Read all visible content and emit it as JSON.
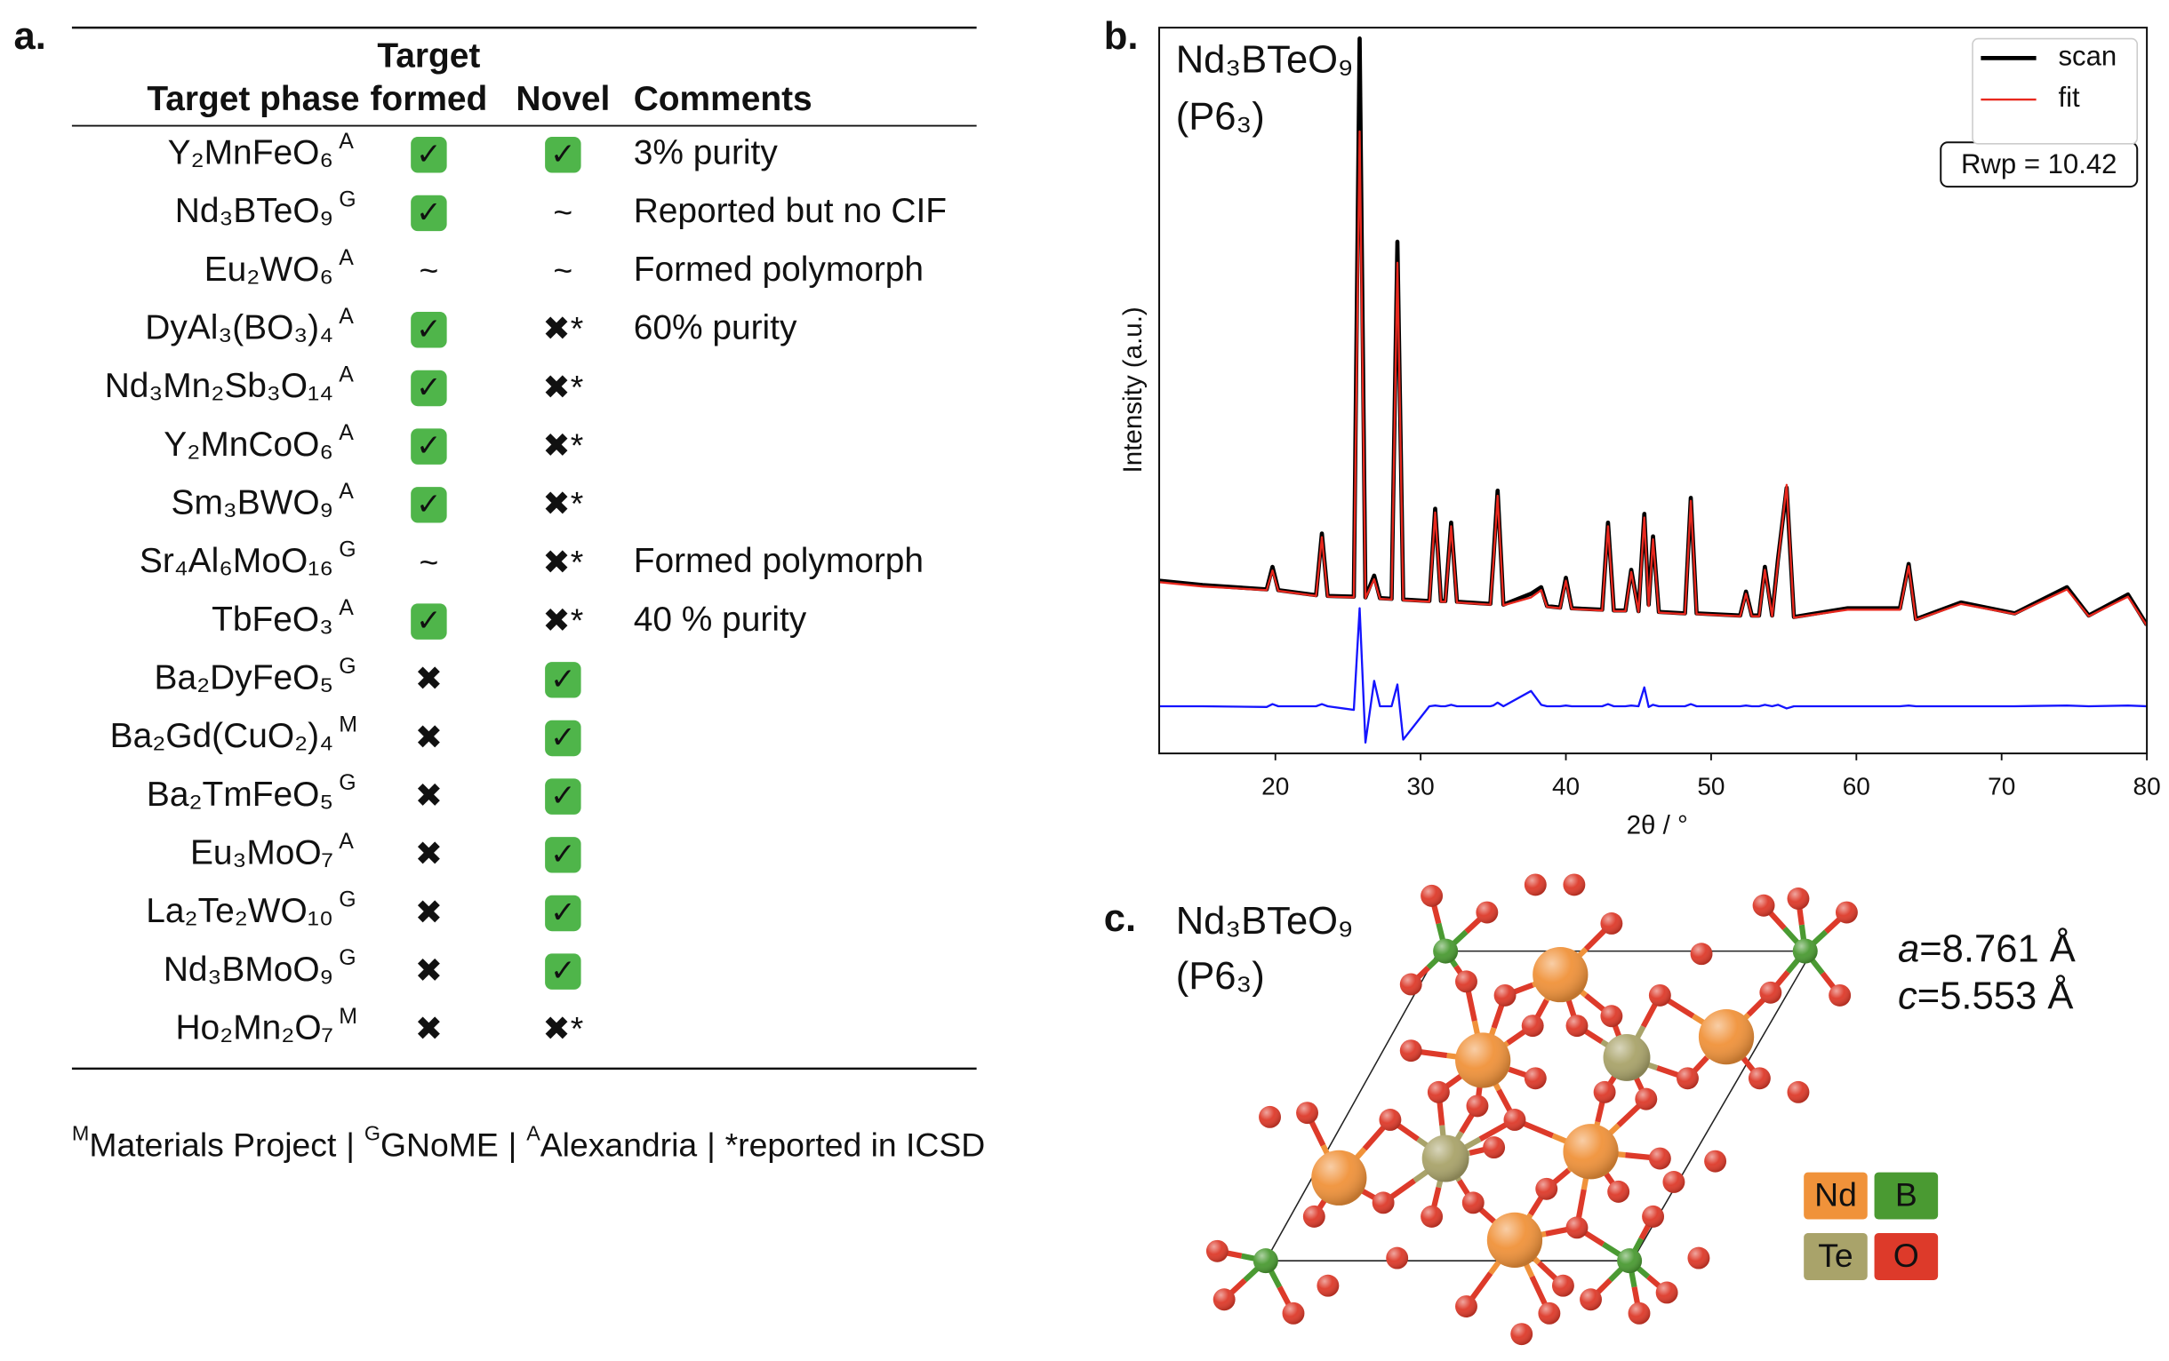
{
  "panel_labels": [
    "a.",
    "b.",
    "c."
  ],
  "table": {
    "header": {
      "target_phase": "Target phase",
      "formed": [
        "Target",
        "formed"
      ],
      "novel": "Novel",
      "comments": "Comments"
    },
    "rows": [
      {
        "phase": "Y₂MnFeO₆",
        "source": "A",
        "formed": "✓",
        "novel": "✓",
        "comments": "3% purity"
      },
      {
        "phase": "Nd₃BTeO₉",
        "source": "G",
        "formed": "✓",
        "novel": "~",
        "comments": "Reported but no CIF"
      },
      {
        "phase": "Eu₂WO₆",
        "source": "A",
        "formed": "~",
        "novel": "~",
        "comments": "Formed polymorph"
      },
      {
        "phase": "DyAl₃(BO₃)₄",
        "source": "A",
        "formed": "✓",
        "novel": "✖*",
        "comments": "60% purity"
      },
      {
        "phase": "Nd₃Mn₂Sb₃O₁₄",
        "source": "A",
        "formed": "✓",
        "novel": "✖*"
      },
      {
        "phase": "Y₂MnCoO₆",
        "source": "A",
        "formed": "✓",
        "novel": "✖*"
      },
      {
        "phase": "Sm₃BWO₉",
        "source": "A",
        "formed": "✓",
        "novel": "✖*"
      },
      {
        "phase": "Sr₄Al₆MoO₁₆",
        "source": "G",
        "formed": "~",
        "novel": "✖*",
        "comments": "Formed polymorph"
      },
      {
        "phase": "TbFeO₃",
        "source": "A",
        "formed": "✓",
        "novel": "✖*",
        "comments": "40 % purity"
      },
      {
        "phase": "Ba₂DyFeO₅",
        "source": "G",
        "formed": "✖",
        "novel": "✓"
      },
      {
        "phase": "Ba₂Gd(CuO₂)₄",
        "source": "M",
        "formed": "✖",
        "novel": "✓"
      },
      {
        "phase": "Ba₂TmFeO₅",
        "source": "G",
        "formed": "✖",
        "novel": "✓"
      },
      {
        "phase": "Eu₃MoO₇",
        "source": "A",
        "formed": "✖",
        "novel": "✓"
      },
      {
        "phase": "La₂Te₂WO₁₀",
        "source": "G",
        "formed": "✖",
        "novel": "✓"
      },
      {
        "phase": "Nd₃BMoO₉",
        "source": "G",
        "formed": "✖",
        "novel": "✓"
      },
      {
        "phase": "Ho₂Mn₂O₇",
        "source": "M",
        "formed": "✖",
        "novel": "✖*"
      }
    ]
  },
  "footnote": {
    "items": [
      {
        "sup": "M",
        "text": "Materials Project"
      },
      {
        "sup": "G",
        "text": "GNoME"
      },
      {
        "sup": "A",
        "text": "Alexandria"
      },
      {
        "text": "*reported in ICSD"
      }
    ],
    "separator": "|"
  },
  "chart_data": {
    "type": "line",
    "title": "Nd₃BTeO₉",
    "subtitle": "(P6₃)",
    "xlabel": "2θ / °",
    "ylabel": "Intensity (a.u.)",
    "annotation": "Rwp = 10.42",
    "legend_position": "upper right",
    "xlim": [
      12,
      80
    ],
    "xticks": [
      20,
      30,
      40,
      50,
      60,
      70,
      80
    ],
    "ylim": [
      0,
      100
    ],
    "x": [
      12,
      15,
      19.4,
      19.8,
      20.2,
      22.8,
      23.2,
      23.6,
      25.4,
      25.8,
      26.2,
      26.8,
      27.2,
      28.0,
      28.4,
      28.8,
      30.6,
      31.0,
      31.4,
      31.7,
      32.1,
      32.5,
      34.8,
      35.0,
      35.3,
      35.7,
      37.6,
      38.3,
      38.7,
      39.6,
      40.0,
      40.4,
      42.5,
      42.9,
      43.3,
      44.1,
      44.5,
      45.0,
      45.4,
      45.7,
      46.0,
      46.4,
      48.2,
      48.6,
      49.0,
      52.0,
      52.4,
      52.8,
      53.3,
      53.7,
      54.2,
      54.6,
      55.2,
      55.7,
      59.4,
      63.0,
      63.6,
      64.1,
      67.2,
      70.9,
      74.5,
      76.0,
      78.7,
      80
    ],
    "series": [
      {
        "name": "scan",
        "color": "#000000",
        "width": 3,
        "values": [
          23.8,
          23.2,
          22.6,
          25.7,
          22.5,
          21.8,
          30.3,
          21.7,
          21.6,
          98.5,
          21.5,
          24.5,
          21.4,
          21.3,
          70.5,
          21.2,
          21.0,
          33.7,
          21.0,
          21.0,
          31.8,
          20.9,
          20.6,
          26.5,
          36.2,
          20.5,
          22.0,
          22.9,
          20.3,
          20.1,
          24.2,
          20.0,
          19.8,
          31.8,
          19.7,
          19.7,
          25.3,
          19.6,
          33.0,
          20.5,
          29.9,
          19.5,
          19.3,
          35.2,
          19.3,
          19.0,
          22.3,
          19.0,
          19.0,
          25.7,
          19.0,
          26.7,
          36.6,
          18.8,
          20.0,
          20.0,
          26.1,
          18.5,
          20.8,
          19.3,
          22.9,
          19.0,
          21.9,
          17.7
        ]
      },
      {
        "name": "fit",
        "color": "#e8281e",
        "width": 1.5,
        "values": [
          23.6,
          23.0,
          22.5,
          25.2,
          22.4,
          21.7,
          29.8,
          21.6,
          21.5,
          85.7,
          21.4,
          24.0,
          21.3,
          21.2,
          67.6,
          21.1,
          20.9,
          33.2,
          20.9,
          20.9,
          31.3,
          20.8,
          20.5,
          26.0,
          35.5,
          20.4,
          21.5,
          22.5,
          20.2,
          20.0,
          23.8,
          19.9,
          19.7,
          31.3,
          19.6,
          19.6,
          25.0,
          19.5,
          32.5,
          20.3,
          29.5,
          19.4,
          19.2,
          34.8,
          19.2,
          18.9,
          22.0,
          18.9,
          18.9,
          25.3,
          18.9,
          26.3,
          37.0,
          18.7,
          19.8,
          19.8,
          25.8,
          18.4,
          20.6,
          19.2,
          22.6,
          18.9,
          21.6,
          17.6
        ]
      },
      {
        "color": "#1414ff",
        "width": 1.5,
        "values": [
          6.5,
          6.5,
          6.4,
          6.8,
          6.5,
          6.5,
          6.8,
          6.5,
          6.0,
          20.0,
          1.5,
          10.0,
          6.5,
          6.5,
          9.5,
          1.9,
          6.5,
          6.6,
          6.5,
          6.5,
          6.7,
          6.5,
          6.5,
          6.6,
          7.0,
          6.5,
          8.6,
          6.7,
          6.5,
          6.5,
          6.6,
          6.5,
          6.5,
          6.8,
          6.5,
          6.5,
          6.6,
          6.5,
          9.1,
          6.4,
          6.7,
          6.5,
          6.5,
          6.8,
          6.5,
          6.5,
          6.6,
          6.5,
          6.5,
          6.7,
          6.5,
          6.7,
          6.2,
          6.5,
          6.5,
          6.5,
          6.6,
          6.5,
          6.5,
          6.5,
          6.6,
          6.5,
          6.6,
          6.5
        ]
      }
    ]
  },
  "structure": {
    "title": "Nd₃BTeO₉",
    "space_group": "(P6₃)",
    "lattice": [
      {
        "param": "a",
        "value": "=8.761 Å"
      },
      {
        "param": "c",
        "value": "=5.553 Å"
      }
    ],
    "legend": [
      {
        "element": "Nd",
        "color": "#f0923a"
      },
      {
        "element": "B",
        "color": "#4a9a32"
      },
      {
        "element": "Te",
        "color": "#a9a36a"
      },
      {
        "element": "O",
        "color": "#dd3a2a"
      }
    ]
  }
}
